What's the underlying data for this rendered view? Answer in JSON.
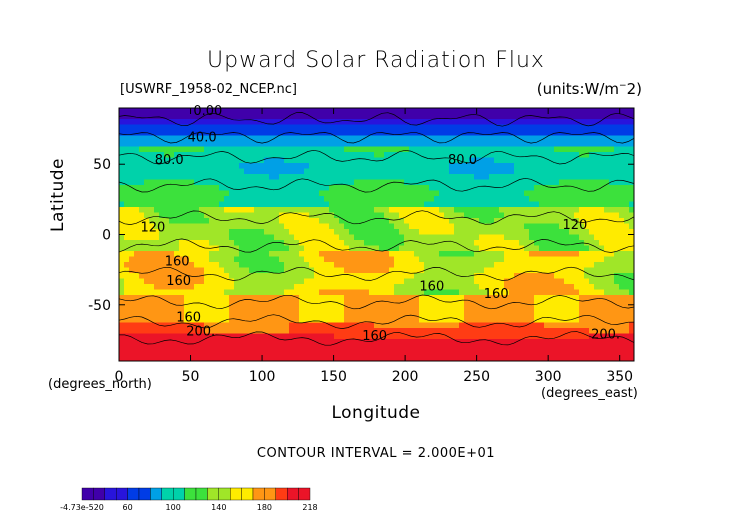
{
  "chart_data": {
    "type": "heatmap",
    "title": "Upward Solar Radiation Flux",
    "source_label": "[USWRF_1958-02_NCEP.nc]",
    "units_label": "(units:W/m^2)",
    "xlabel": "Longitude",
    "ylabel": "Latitude",
    "x_unit_label": "(degrees_east)",
    "y_unit_label": "(degrees_north)",
    "xlim": [
      0,
      360
    ],
    "ylim": [
      -90,
      90
    ],
    "x_ticks": [
      "0",
      "50",
      "100",
      "150",
      "200",
      "250",
      "300",
      "350"
    ],
    "y_ticks": [
      "50",
      "0",
      "-50"
    ],
    "contour_interval": "CONTOUR INTERVAL = 2.000E+01",
    "contour_labels": [
      "0.00",
      "40.0",
      "80.0",
      "80.0",
      "120",
      "120",
      "160",
      "160",
      "160",
      "160",
      "160",
      "200.",
      "200.",
      "160"
    ],
    "colorbar": {
      "labels": [
        "-4.73e-520",
        "60",
        "100",
        "140",
        "180",
        "218"
      ],
      "range": [
        0,
        218
      ]
    },
    "grid": false,
    "legend": "colorbar bottom-left"
  },
  "labels": {
    "title": "Upward Solar Radiation Flux",
    "fileinfo": "[USWRF_1958-02_NCEP.nc]",
    "units": "(units:W/m^2)",
    "xname": "Longitude",
    "yname": "Latitude",
    "xunit_left": "(degrees_north)",
    "xunit_right": "(degrees_east)",
    "interval": "CONTOUR INTERVAL = 2.000E+01"
  }
}
